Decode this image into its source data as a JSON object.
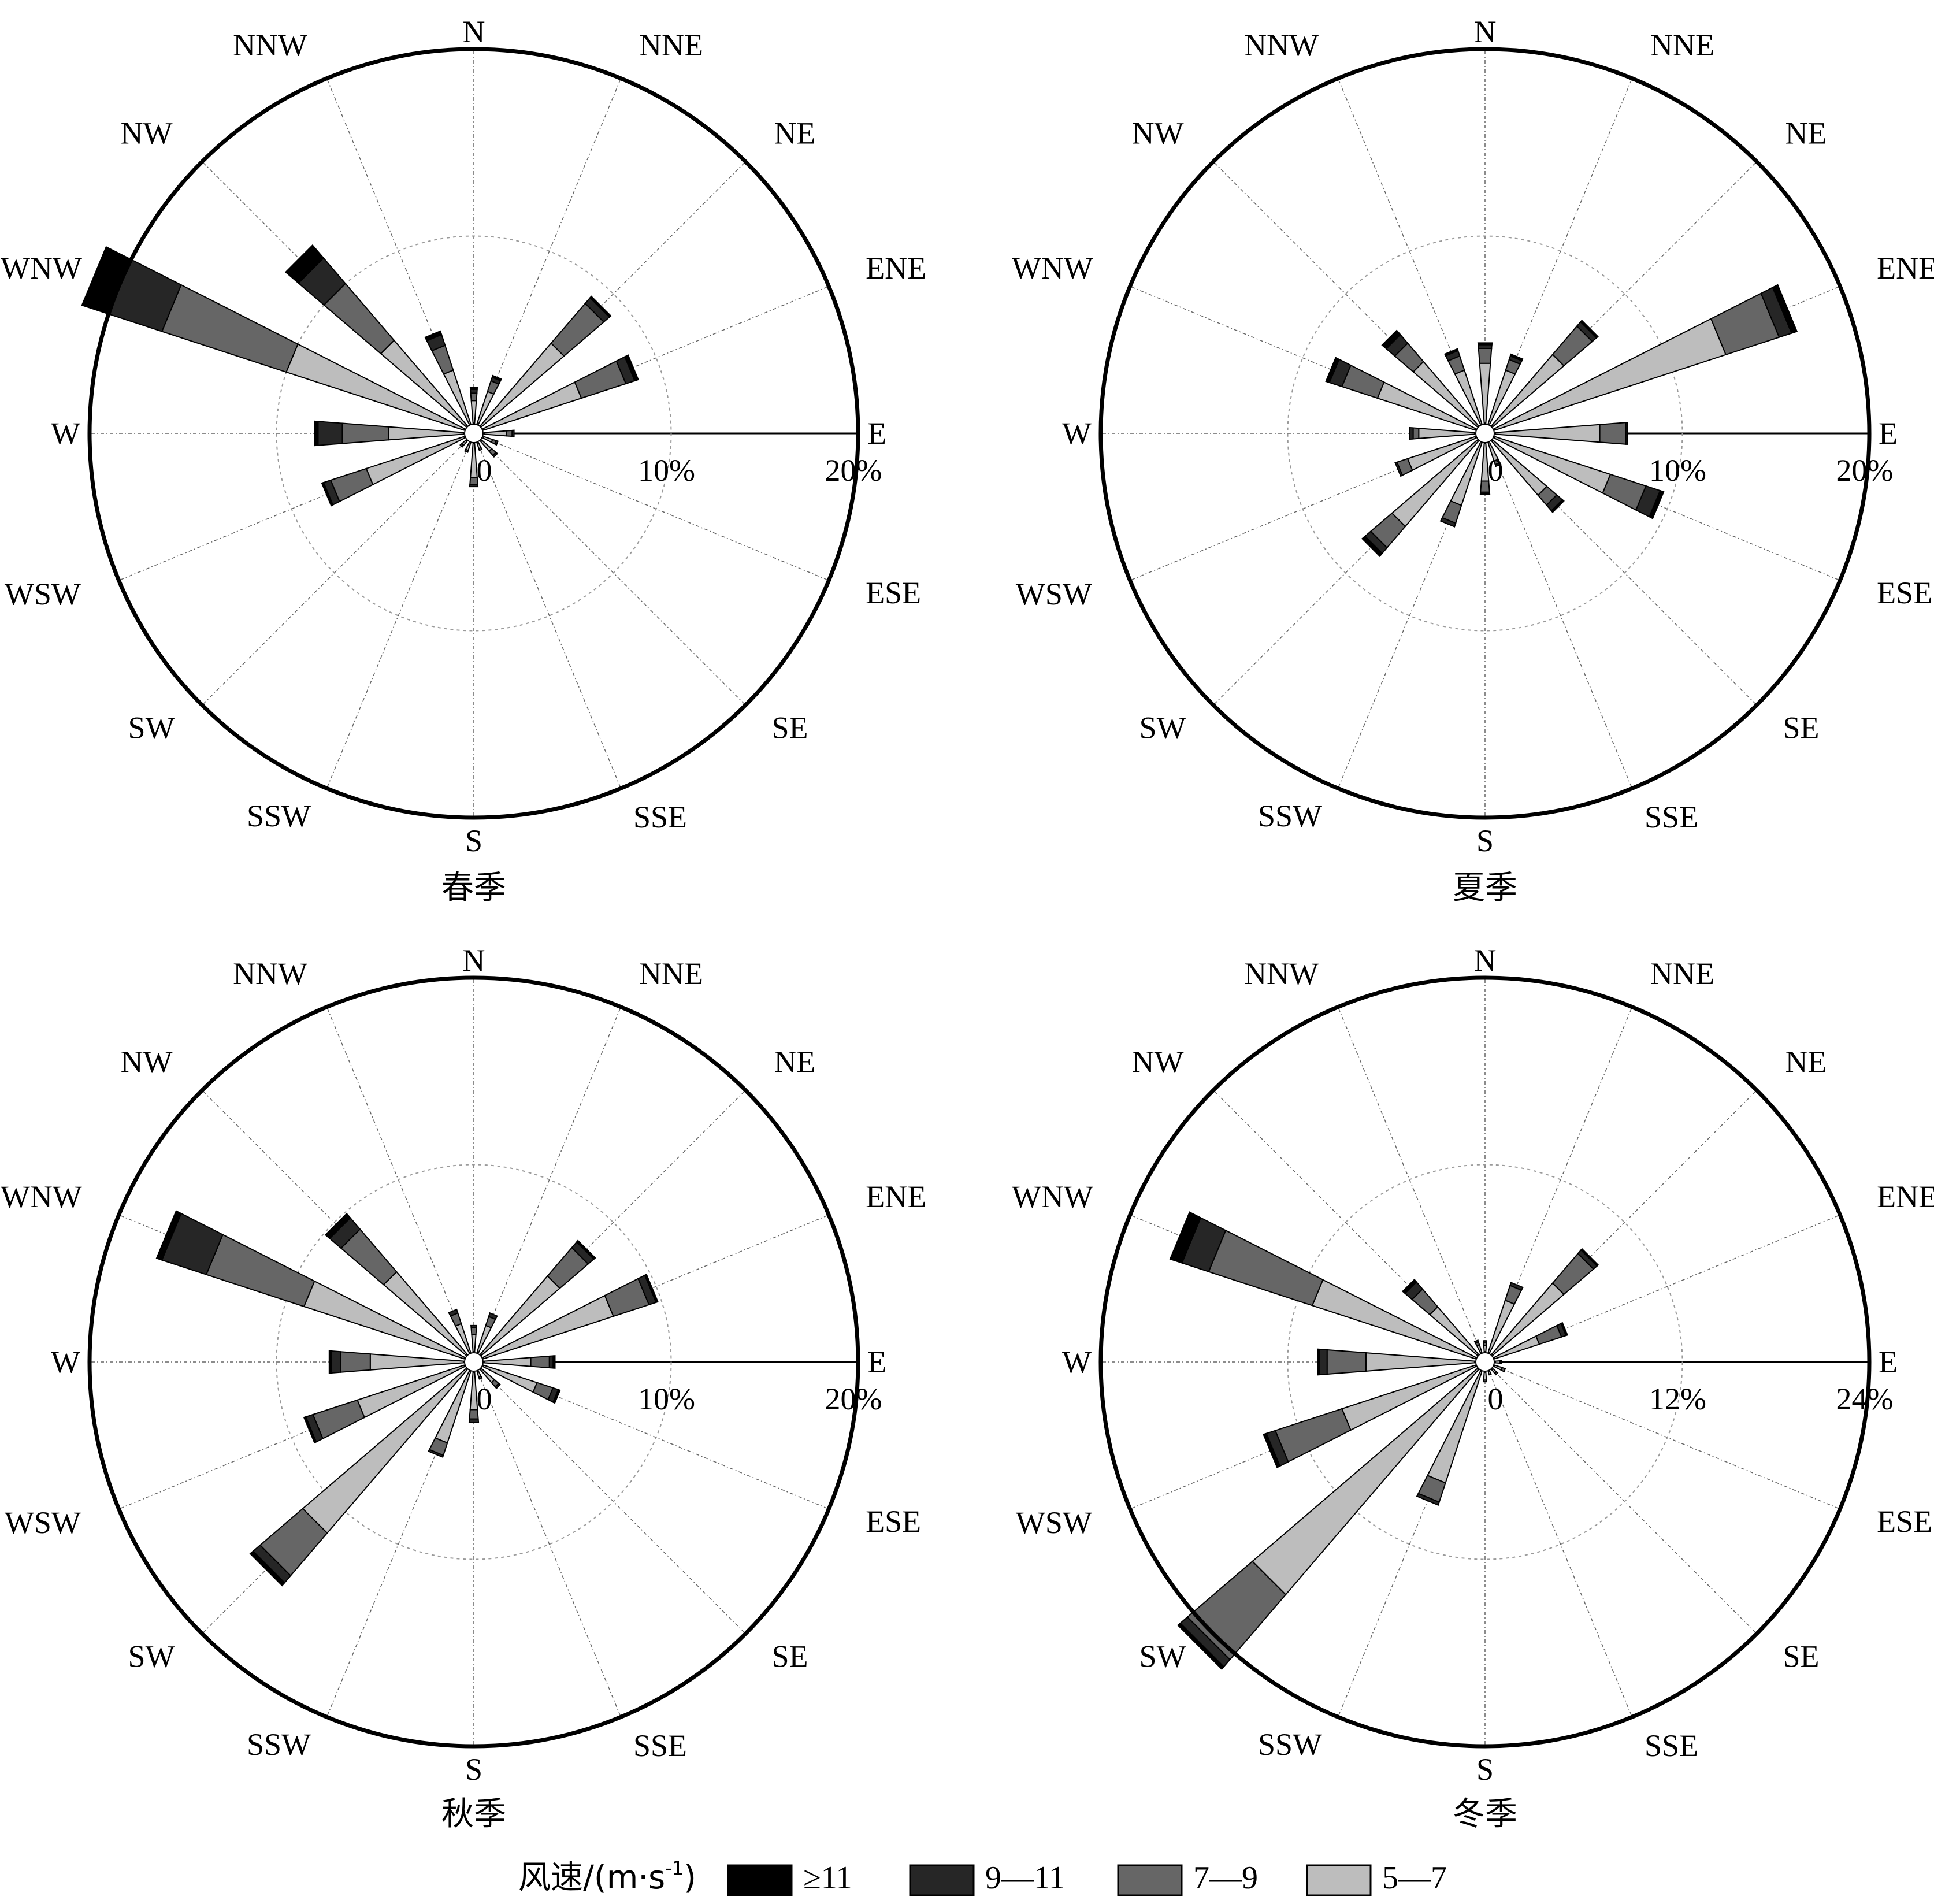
{
  "chart_data": [
    {
      "type": "polar-bar",
      "title": "春季",
      "directions": [
        "N",
        "NNE",
        "NE",
        "ENE",
        "E",
        "ESE",
        "SE",
        "SSE",
        "S",
        "SSW",
        "SW",
        "WSW",
        "W",
        "WNW",
        "NW",
        "NNW"
      ],
      "rlim": [
        0,
        20
      ],
      "ticks": [
        "0",
        "10%",
        "20%"
      ],
      "series": [
        {
          "name": "5—7",
          "values": [
            1.2,
            1.8,
            5.8,
            5.5,
            1.2,
            0.5,
            0.7,
            0.3,
            1.8,
            0.4,
            0.3,
            5.5,
            4.0,
            10.0,
            6.0,
            3.0
          ]
        },
        {
          "name": "7—9",
          "values": [
            0.4,
            0.6,
            2.8,
            2.5,
            0.3,
            0.2,
            0.3,
            0.1,
            0.4,
            0.1,
            0.1,
            2.0,
            2.5,
            7.0,
            4.0,
            1.4
          ]
        },
        {
          "name": "9—11",
          "values": [
            0.2,
            0.2,
            0.4,
            0.5,
            0.1,
            0.1,
            0.1,
            0.0,
            0.1,
            0.0,
            0.0,
            0.4,
            1.3,
            3.0,
            1.8,
            0.6
          ]
        },
        {
          "name": "≥11",
          "values": [
            0.1,
            0.1,
            0.1,
            0.2,
            0.0,
            0.0,
            0.0,
            0.0,
            0.0,
            0.0,
            0.0,
            0.1,
            0.2,
            1.5,
            0.9,
            0.2
          ]
        }
      ]
    },
    {
      "type": "polar-bar",
      "title": "夏季",
      "directions": [
        "N",
        "NNE",
        "NE",
        "ENE",
        "E",
        "ESE",
        "SE",
        "SSE",
        "S",
        "SSW",
        "SW",
        "WSW",
        "W",
        "WNW",
        "NW",
        "NNW"
      ],
      "rlim": [
        0,
        20
      ],
      "ticks": [
        "0",
        "10%",
        "20%"
      ],
      "series": [
        {
          "name": "5—7",
          "values": [
            3.2,
            3.0,
            5.0,
            13.0,
            5.6,
            6.5,
            3.8,
            1.0,
            2.0,
            3.5,
            6.0,
            3.8,
            3.0,
            5.5,
            4.5,
            3.0
          ]
        },
        {
          "name": "7—9",
          "values": [
            0.8,
            0.6,
            2.0,
            3.0,
            1.4,
            2.0,
            0.7,
            0.2,
            0.6,
            1.0,
            1.5,
            0.6,
            0.3,
            2.0,
            1.3,
            0.8
          ]
        },
        {
          "name": "9—11",
          "values": [
            0.2,
            0.2,
            0.3,
            0.7,
            0.1,
            0.8,
            0.4,
            0.1,
            0.1,
            0.2,
            0.4,
            0.1,
            0.2,
            0.7,
            0.6,
            0.3
          ]
        },
        {
          "name": "≥11",
          "values": [
            0.1,
            0.1,
            0.1,
            0.3,
            0.0,
            0.2,
            0.1,
            0.0,
            0.0,
            0.0,
            0.2,
            0.0,
            0.0,
            0.2,
            0.3,
            0.1
          ]
        }
      ]
    },
    {
      "type": "polar-bar",
      "title": "秋季",
      "directions": [
        "N",
        "NNE",
        "NE",
        "ENE",
        "E",
        "ESE",
        "SE",
        "SSE",
        "S",
        "SSW",
        "SW",
        "WSW",
        "W",
        "WNW",
        "NW",
        "NNW"
      ],
      "rlim": [
        0,
        20
      ],
      "ticks": [
        "0",
        "10%",
        "20%"
      ],
      "series": [
        {
          "name": "5—7",
          "values": [
            0.9,
            1.5,
            5.5,
            7.3,
            2.5,
            3.0,
            0.9,
            0.3,
            2.0,
            4.0,
            11.5,
            6.0,
            5.0,
            9.0,
            5.8,
            1.6
          ]
        },
        {
          "name": "7—9",
          "values": [
            0.4,
            0.5,
            2.0,
            2.0,
            1.0,
            0.9,
            0.3,
            0.1,
            0.5,
            0.7,
            3.0,
            2.5,
            1.6,
            5.5,
            3.0,
            0.6
          ]
        },
        {
          "name": "9—11",
          "values": [
            0.1,
            0.2,
            0.4,
            0.4,
            0.2,
            0.3,
            0.1,
            0.0,
            0.2,
            0.1,
            0.5,
            0.4,
            0.5,
            2.5,
            0.8,
            0.2
          ]
        },
        {
          "name": "≥11",
          "values": [
            0.0,
            0.0,
            0.1,
            0.1,
            0.1,
            0.1,
            0.0,
            0.0,
            0.0,
            0.0,
            0.2,
            0.1,
            0.1,
            0.3,
            0.3,
            0.0
          ]
        }
      ]
    },
    {
      "type": "polar-bar",
      "title": "冬季",
      "directions": [
        "N",
        "NNE",
        "NE",
        "ENE",
        "E",
        "ESE",
        "SE",
        "SSE",
        "S",
        "SSW",
        "SW",
        "WSW",
        "W",
        "WNW",
        "NW",
        "NNW"
      ],
      "rlim": [
        0,
        24
      ],
      "ticks": [
        "0",
        "12%",
        "24%"
      ],
      "series": [
        {
          "name": "5—7",
          "values": [
            0.4,
            3.5,
            6.0,
            3.0,
            0.3,
            0.5,
            0.3,
            0.2,
            0.5,
            7.5,
            19.0,
            9.0,
            7.0,
            11.0,
            4.0,
            0.5
          ]
        },
        {
          "name": "7—9",
          "values": [
            0.2,
            1.0,
            2.5,
            1.5,
            0.1,
            0.2,
            0.1,
            0.0,
            0.1,
            1.3,
            5.5,
            4.5,
            2.5,
            7.0,
            1.5,
            0.2
          ]
        },
        {
          "name": "9—11",
          "values": [
            0.1,
            0.2,
            0.3,
            0.3,
            0.0,
            0.0,
            0.0,
            0.0,
            0.0,
            0.2,
            0.6,
            0.6,
            0.5,
            1.8,
            0.6,
            0.1
          ]
        },
        {
          "name": "≥11",
          "values": [
            0.0,
            0.0,
            0.1,
            0.1,
            0.0,
            0.0,
            0.0,
            0.0,
            0.0,
            0.0,
            0.2,
            0.2,
            0.1,
            0.8,
            0.2,
            0.0
          ]
        }
      ]
    }
  ],
  "legend": {
    "title": "风速/(m·s",
    "title_sup": "-1",
    "title_end": ")",
    "items": [
      {
        "label": "≥11",
        "color": "#000000"
      },
      {
        "label": "9—11",
        "color": "#262626"
      },
      {
        "label": "7—9",
        "color": "#666666"
      },
      {
        "label": "5—7",
        "color": "#bdbdbd"
      }
    ]
  },
  "colors": {
    "5—7": "#bdbdbd",
    "7—9": "#666666",
    "9—11": "#262626",
    "≥11": "#000000"
  }
}
